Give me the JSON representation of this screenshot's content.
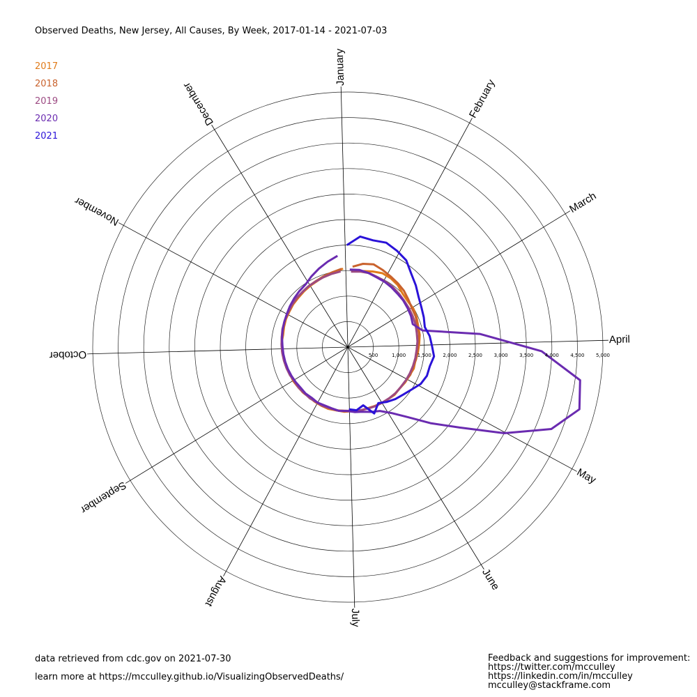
{
  "title": "Observed Deaths, New Jersey, All Causes, By Week, 2017-01-14 - 2021-07-03",
  "footer": {
    "source": "data retrieved from cdc.gov on 2021-07-30",
    "learn_more": "learn more at https://mcculley.github.io/VisualizingObservedDeaths/",
    "feedback_title": "Feedback and suggestions for improvement:",
    "twitter": "https://twitter.com/mcculley",
    "linkedin": "https://linkedin.com/in/mcculley",
    "email": "mcculley@stackframe.com"
  },
  "chart_data": {
    "type": "polar-line",
    "title": "Observed Deaths, New Jersey, All Causes, By Week, 2017-01-14 - 2021-07-03",
    "angular_axis": {
      "labels": [
        "January",
        "February",
        "March",
        "April",
        "May",
        "June",
        "July",
        "August",
        "September",
        "October",
        "November",
        "December"
      ],
      "start": "top",
      "direction": "clockwise"
    },
    "radial_axis": {
      "range": [
        0,
        5000
      ],
      "ticks": [
        500,
        1000,
        1500,
        2000,
        2500,
        3000,
        3500,
        4000,
        4500,
        5000
      ],
      "tick_labels": [
        "500",
        "1,000",
        "1,500",
        "2,000",
        "2,500",
        "3,000",
        "3,500",
        "4,000",
        "4,500",
        "5,000"
      ]
    },
    "legend_position": "top-left",
    "series": [
      {
        "name": "2017",
        "color": "#e07b1a",
        "points": [
          {
            "doy": 14,
            "deaths": 1520
          },
          {
            "doy": 21,
            "deaths": 1560
          },
          {
            "doy": 28,
            "deaths": 1600
          },
          {
            "doy": 35,
            "deaths": 1590
          },
          {
            "doy": 42,
            "deaths": 1560
          },
          {
            "doy": 49,
            "deaths": 1500
          },
          {
            "doy": 56,
            "deaths": 1480
          },
          {
            "doy": 63,
            "deaths": 1490
          },
          {
            "doy": 70,
            "deaths": 1470
          },
          {
            "doy": 77,
            "deaths": 1440
          },
          {
            "doy": 84,
            "deaths": 1430
          },
          {
            "doy": 91,
            "deaths": 1400
          },
          {
            "doy": 98,
            "deaths": 1380
          },
          {
            "doy": 105,
            "deaths": 1350
          },
          {
            "doy": 112,
            "deaths": 1360
          },
          {
            "doy": 119,
            "deaths": 1330
          },
          {
            "doy": 126,
            "deaths": 1320
          },
          {
            "doy": 133,
            "deaths": 1300
          },
          {
            "doy": 140,
            "deaths": 1310
          },
          {
            "doy": 147,
            "deaths": 1290
          },
          {
            "doy": 154,
            "deaths": 1280
          },
          {
            "doy": 161,
            "deaths": 1270
          },
          {
            "doy": 168,
            "deaths": 1260
          },
          {
            "doy": 175,
            "deaths": 1270
          },
          {
            "doy": 182,
            "deaths": 1250
          },
          {
            "doy": 189,
            "deaths": 1250
          },
          {
            "doy": 196,
            "deaths": 1260
          },
          {
            "doy": 203,
            "deaths": 1270
          },
          {
            "doy": 210,
            "deaths": 1260
          },
          {
            "doy": 217,
            "deaths": 1250
          },
          {
            "doy": 224,
            "deaths": 1240
          },
          {
            "doy": 231,
            "deaths": 1250
          },
          {
            "doy": 238,
            "deaths": 1240
          },
          {
            "doy": 245,
            "deaths": 1240
          },
          {
            "doy": 252,
            "deaths": 1250
          },
          {
            "doy": 259,
            "deaths": 1260
          },
          {
            "doy": 266,
            "deaths": 1270
          },
          {
            "doy": 273,
            "deaths": 1280
          },
          {
            "doy": 280,
            "deaths": 1300
          },
          {
            "doy": 287,
            "deaths": 1290
          },
          {
            "doy": 294,
            "deaths": 1310
          },
          {
            "doy": 301,
            "deaths": 1330
          },
          {
            "doy": 308,
            "deaths": 1340
          },
          {
            "doy": 315,
            "deaths": 1360
          },
          {
            "doy": 322,
            "deaths": 1370
          },
          {
            "doy": 329,
            "deaths": 1390
          },
          {
            "doy": 336,
            "deaths": 1410
          },
          {
            "doy": 343,
            "deaths": 1430
          },
          {
            "doy": 350,
            "deaths": 1470
          },
          {
            "doy": 357,
            "deaths": 1500
          },
          {
            "doy": 364,
            "deaths": 1540
          }
        ]
      },
      {
        "name": "2018",
        "color": "#c9622d",
        "points": [
          {
            "doy": 6,
            "deaths": 1580
          },
          {
            "doy": 13,
            "deaths": 1660
          },
          {
            "doy": 20,
            "deaths": 1700
          },
          {
            "doy": 27,
            "deaths": 1660
          },
          {
            "doy": 34,
            "deaths": 1620
          },
          {
            "doy": 41,
            "deaths": 1590
          },
          {
            "doy": 48,
            "deaths": 1560
          },
          {
            "doy": 55,
            "deaths": 1510
          },
          {
            "doy": 62,
            "deaths": 1470
          },
          {
            "doy": 69,
            "deaths": 1460
          },
          {
            "doy": 76,
            "deaths": 1430
          },
          {
            "doy": 83,
            "deaths": 1420
          },
          {
            "doy": 90,
            "deaths": 1390
          },
          {
            "doy": 97,
            "deaths": 1370
          },
          {
            "doy": 104,
            "deaths": 1360
          },
          {
            "doy": 111,
            "deaths": 1340
          },
          {
            "doy": 118,
            "deaths": 1340
          },
          {
            "doy": 125,
            "deaths": 1310
          },
          {
            "doy": 132,
            "deaths": 1300
          },
          {
            "doy": 139,
            "deaths": 1300
          },
          {
            "doy": 146,
            "deaths": 1290
          },
          {
            "doy": 153,
            "deaths": 1280
          },
          {
            "doy": 160,
            "deaths": 1270
          },
          {
            "doy": 167,
            "deaths": 1260
          },
          {
            "doy": 174,
            "deaths": 1270
          },
          {
            "doy": 181,
            "deaths": 1260
          },
          {
            "doy": 188,
            "deaths": 1270
          },
          {
            "doy": 195,
            "deaths": 1260
          },
          {
            "doy": 202,
            "deaths": 1250
          },
          {
            "doy": 209,
            "deaths": 1260
          },
          {
            "doy": 216,
            "deaths": 1250
          },
          {
            "doy": 223,
            "deaths": 1240
          },
          {
            "doy": 230,
            "deaths": 1250
          },
          {
            "doy": 237,
            "deaths": 1250
          },
          {
            "doy": 244,
            "deaths": 1260
          },
          {
            "doy": 251,
            "deaths": 1250
          },
          {
            "doy": 258,
            "deaths": 1270
          },
          {
            "doy": 265,
            "deaths": 1280
          },
          {
            "doy": 272,
            "deaths": 1290
          },
          {
            "doy": 279,
            "deaths": 1300
          },
          {
            "doy": 286,
            "deaths": 1310
          },
          {
            "doy": 293,
            "deaths": 1320
          },
          {
            "doy": 300,
            "deaths": 1340
          },
          {
            "doy": 307,
            "deaths": 1350
          },
          {
            "doy": 314,
            "deaths": 1370
          },
          {
            "doy": 321,
            "deaths": 1380
          },
          {
            "doy": 328,
            "deaths": 1400
          },
          {
            "doy": 335,
            "deaths": 1420
          },
          {
            "doy": 342,
            "deaths": 1440
          },
          {
            "doy": 349,
            "deaths": 1470
          },
          {
            "doy": 356,
            "deaths": 1500
          },
          {
            "doy": 363,
            "deaths": 1540
          }
        ]
      },
      {
        "name": "2019",
        "color": "#9c4a82",
        "points": [
          {
            "doy": 5,
            "deaths": 1480
          },
          {
            "doy": 12,
            "deaths": 1500
          },
          {
            "doy": 19,
            "deaths": 1510
          },
          {
            "doy": 26,
            "deaths": 1490
          },
          {
            "doy": 33,
            "deaths": 1480
          },
          {
            "doy": 40,
            "deaths": 1470
          },
          {
            "doy": 47,
            "deaths": 1450
          },
          {
            "doy": 54,
            "deaths": 1430
          },
          {
            "doy": 61,
            "deaths": 1420
          },
          {
            "doy": 68,
            "deaths": 1410
          },
          {
            "doy": 75,
            "deaths": 1400
          },
          {
            "doy": 82,
            "deaths": 1380
          },
          {
            "doy": 89,
            "deaths": 1370
          },
          {
            "doy": 96,
            "deaths": 1350
          },
          {
            "doy": 103,
            "deaths": 1340
          },
          {
            "doy": 110,
            "deaths": 1330
          },
          {
            "doy": 117,
            "deaths": 1320
          },
          {
            "doy": 124,
            "deaths": 1310
          },
          {
            "doy": 131,
            "deaths": 1300
          },
          {
            "doy": 138,
            "deaths": 1300
          },
          {
            "doy": 145,
            "deaths": 1290
          },
          {
            "doy": 152,
            "deaths": 1280
          },
          {
            "doy": 159,
            "deaths": 1280
          },
          {
            "doy": 166,
            "deaths": 1270
          },
          {
            "doy": 173,
            "deaths": 1260
          },
          {
            "doy": 180,
            "deaths": 1260
          },
          {
            "doy": 187,
            "deaths": 1250
          },
          {
            "doy": 194,
            "deaths": 1260
          },
          {
            "doy": 201,
            "deaths": 1250
          },
          {
            "doy": 208,
            "deaths": 1250
          },
          {
            "doy": 215,
            "deaths": 1240
          },
          {
            "doy": 222,
            "deaths": 1250
          },
          {
            "doy": 229,
            "deaths": 1240
          },
          {
            "doy": 236,
            "deaths": 1250
          },
          {
            "doy": 243,
            "deaths": 1240
          },
          {
            "doy": 250,
            "deaths": 1260
          },
          {
            "doy": 257,
            "deaths": 1270
          },
          {
            "doy": 264,
            "deaths": 1280
          },
          {
            "doy": 271,
            "deaths": 1290
          },
          {
            "doy": 278,
            "deaths": 1300
          },
          {
            "doy": 285,
            "deaths": 1310
          },
          {
            "doy": 292,
            "deaths": 1330
          },
          {
            "doy": 299,
            "deaths": 1340
          },
          {
            "doy": 306,
            "deaths": 1350
          },
          {
            "doy": 313,
            "deaths": 1370
          },
          {
            "doy": 320,
            "deaths": 1390
          },
          {
            "doy": 327,
            "deaths": 1400
          },
          {
            "doy": 334,
            "deaths": 1420
          },
          {
            "doy": 341,
            "deaths": 1430
          },
          {
            "doy": 348,
            "deaths": 1450
          },
          {
            "doy": 355,
            "deaths": 1470
          },
          {
            "doy": 362,
            "deaths": 1490
          }
        ]
      },
      {
        "name": "2020",
        "color": "#6a2bb0",
        "points": [
          {
            "doy": 4,
            "deaths": 1520
          },
          {
            "doy": 11,
            "deaths": 1530
          },
          {
            "doy": 18,
            "deaths": 1510
          },
          {
            "doy": 25,
            "deaths": 1480
          },
          {
            "doy": 32,
            "deaths": 1470
          },
          {
            "doy": 39,
            "deaths": 1450
          },
          {
            "doy": 46,
            "deaths": 1430
          },
          {
            "doy": 53,
            "deaths": 1420
          },
          {
            "doy": 60,
            "deaths": 1400
          },
          {
            "doy": 67,
            "deaths": 1380
          },
          {
            "doy": 74,
            "deaths": 1350
          },
          {
            "doy": 81,
            "deaths": 1500
          },
          {
            "doy": 88,
            "deaths": 2600
          },
          {
            "doy": 95,
            "deaths": 3800
          },
          {
            "doy": 102,
            "deaths": 4600
          },
          {
            "doy": 109,
            "deaths": 4700
          },
          {
            "doy": 116,
            "deaths": 4300
          },
          {
            "doy": 123,
            "deaths": 3500
          },
          {
            "doy": 130,
            "deaths": 2700
          },
          {
            "doy": 137,
            "deaths": 2200
          },
          {
            "doy": 144,
            "deaths": 1800
          },
          {
            "doy": 151,
            "deaths": 1550
          },
          {
            "doy": 158,
            "deaths": 1400
          },
          {
            "doy": 165,
            "deaths": 1350
          },
          {
            "doy": 172,
            "deaths": 1300
          },
          {
            "doy": 179,
            "deaths": 1280
          },
          {
            "doy": 186,
            "deaths": 1250
          },
          {
            "doy": 193,
            "deaths": 1260
          },
          {
            "doy": 200,
            "deaths": 1240
          },
          {
            "doy": 207,
            "deaths": 1230
          },
          {
            "doy": 214,
            "deaths": 1240
          },
          {
            "doy": 221,
            "deaths": 1220
          },
          {
            "doy": 228,
            "deaths": 1230
          },
          {
            "doy": 235,
            "deaths": 1220
          },
          {
            "doy": 242,
            "deaths": 1230
          },
          {
            "doy": 249,
            "deaths": 1240
          },
          {
            "doy": 256,
            "deaths": 1250
          },
          {
            "doy": 263,
            "deaths": 1260
          },
          {
            "doy": 270,
            "deaths": 1270
          },
          {
            "doy": 277,
            "deaths": 1280
          },
          {
            "doy": 284,
            "deaths": 1300
          },
          {
            "doy": 291,
            "deaths": 1320
          },
          {
            "doy": 298,
            "deaths": 1340
          },
          {
            "doy": 305,
            "deaths": 1360
          },
          {
            "doy": 312,
            "deaths": 1390
          },
          {
            "doy": 319,
            "deaths": 1420
          },
          {
            "doy": 326,
            "deaths": 1450
          },
          {
            "doy": 333,
            "deaths": 1480
          },
          {
            "doy": 340,
            "deaths": 1560
          },
          {
            "doy": 347,
            "deaths": 1640
          },
          {
            "doy": 354,
            "deaths": 1720
          },
          {
            "doy": 361,
            "deaths": 1800
          }
        ]
      },
      {
        "name": "2021",
        "color": "#2a12d8",
        "points": [
          {
            "doy": 2,
            "deaths": 2000
          },
          {
            "doy": 9,
            "deaths": 2180
          },
          {
            "doy": 16,
            "deaths": 2150
          },
          {
            "doy": 23,
            "deaths": 2180
          },
          {
            "doy": 30,
            "deaths": 2120
          },
          {
            "doy": 37,
            "deaths": 2050
          },
          {
            "doy": 44,
            "deaths": 1900
          },
          {
            "doy": 51,
            "deaths": 1800
          },
          {
            "doy": 58,
            "deaths": 1700
          },
          {
            "doy": 65,
            "deaths": 1640
          },
          {
            "doy": 72,
            "deaths": 1600
          },
          {
            "doy": 79,
            "deaths": 1560
          },
          {
            "doy": 86,
            "deaths": 1620
          },
          {
            "doy": 93,
            "deaths": 1650
          },
          {
            "doy": 100,
            "deaths": 1700
          },
          {
            "doy": 107,
            "deaths": 1650
          },
          {
            "doy": 114,
            "deaths": 1650
          },
          {
            "doy": 121,
            "deaths": 1600
          },
          {
            "doy": 128,
            "deaths": 1500
          },
          {
            "doy": 135,
            "deaths": 1430
          },
          {
            "doy": 142,
            "deaths": 1380
          },
          {
            "doy": 149,
            "deaths": 1320
          },
          {
            "doy": 156,
            "deaths": 1250
          },
          {
            "doy": 163,
            "deaths": 1400
          },
          {
            "doy": 170,
            "deaths": 1180
          },
          {
            "doy": 177,
            "deaths": 1250
          },
          {
            "doy": 184,
            "deaths": 1220
          }
        ]
      }
    ]
  }
}
